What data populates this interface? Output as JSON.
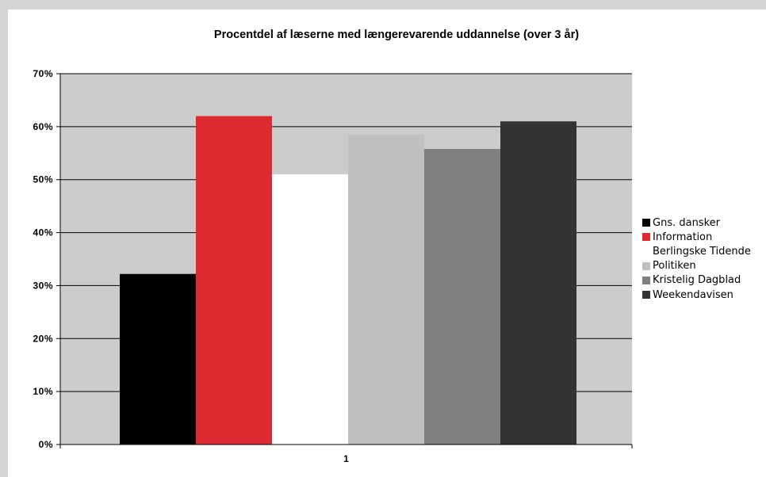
{
  "chart_data": {
    "type": "bar",
    "title": "Procentdel af læserne med længerevarende uddannelse (over 3 år)",
    "xlabel": "",
    "ylabel": "",
    "categories": [
      "1"
    ],
    "ylim": [
      0,
      70
    ],
    "yticks": [
      0,
      10,
      20,
      30,
      40,
      50,
      60,
      70
    ],
    "ytick_labels": [
      "0%",
      "10%",
      "20%",
      "30%",
      "40%",
      "50%",
      "60%",
      "70%"
    ],
    "grid": true,
    "legend_position": "right",
    "plot_background": "#cccccc",
    "series": [
      {
        "name": "Gns. dansker",
        "values": [
          32.2
        ],
        "color": "#000000"
      },
      {
        "name": "Information",
        "values": [
          62.0
        ],
        "color": "#dd2a30"
      },
      {
        "name": "Berlingske Tidende",
        "values": [
          51.0
        ],
        "color": "#ffffff"
      },
      {
        "name": "Politiken",
        "values": [
          58.5
        ],
        "color": "#c0c0c0"
      },
      {
        "name": "Kristelig Dagblad",
        "values": [
          55.8
        ],
        "color": "#808080"
      },
      {
        "name": "Weekendavisen",
        "values": [
          61.0
        ],
        "color": "#333333"
      }
    ]
  }
}
